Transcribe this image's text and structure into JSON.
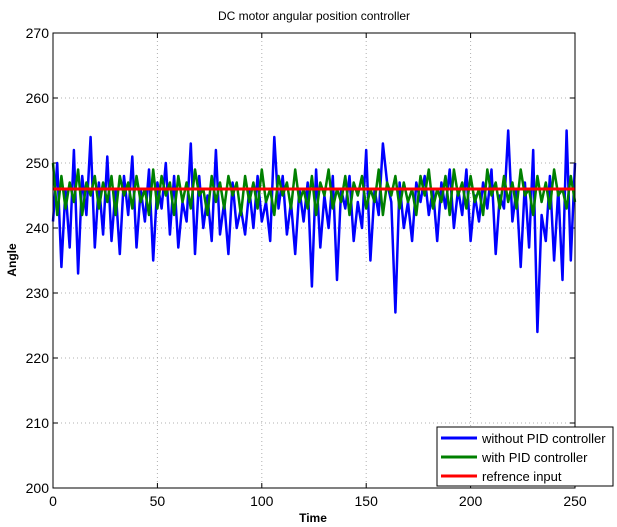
{
  "chart_data": {
    "type": "line",
    "title": "DC motor angular position controller",
    "xlabel": "Time",
    "ylabel": "Angle",
    "xlim": [
      0,
      250
    ],
    "ylim": [
      200,
      270
    ],
    "xticks": [
      0,
      50,
      100,
      150,
      200,
      250
    ],
    "yticks": [
      200,
      210,
      220,
      230,
      240,
      250,
      260,
      270
    ],
    "grid": true,
    "legend_position": "bottom-right",
    "series": [
      {
        "name": "without PID controller",
        "color": "#0000ff",
        "x": [
          0,
          2,
          4,
          6,
          8,
          10,
          12,
          14,
          16,
          18,
          20,
          22,
          24,
          26,
          28,
          30,
          32,
          34,
          36,
          38,
          40,
          42,
          44,
          46,
          48,
          50,
          52,
          54,
          56,
          58,
          60,
          62,
          64,
          66,
          68,
          70,
          72,
          74,
          76,
          78,
          80,
          82,
          84,
          86,
          88,
          90,
          92,
          94,
          96,
          98,
          100,
          102,
          104,
          106,
          108,
          110,
          112,
          114,
          116,
          118,
          120,
          122,
          124,
          126,
          128,
          130,
          132,
          134,
          136,
          138,
          140,
          142,
          144,
          146,
          148,
          150,
          152,
          154,
          156,
          158,
          160,
          162,
          164,
          166,
          168,
          170,
          172,
          174,
          176,
          178,
          180,
          182,
          184,
          186,
          188,
          190,
          192,
          194,
          196,
          198,
          200,
          202,
          204,
          206,
          208,
          210,
          212,
          214,
          216,
          218,
          220,
          222,
          224,
          226,
          228,
          230,
          232,
          234,
          236,
          238,
          240,
          242,
          244,
          246,
          248,
          250
        ],
        "y": [
          241,
          250,
          234,
          246,
          237,
          252,
          233,
          248,
          242,
          254,
          237,
          247,
          239,
          251,
          238,
          246,
          236,
          248,
          242,
          251,
          237,
          246,
          241,
          249,
          235,
          247,
          243,
          250,
          239,
          248,
          237,
          244,
          241,
          253,
          236,
          248,
          240,
          245,
          238,
          252,
          239,
          244,
          236,
          247,
          240,
          243,
          239,
          246,
          240,
          248,
          241,
          244,
          238,
          254,
          243,
          248,
          239,
          244,
          236,
          246,
          241,
          247,
          231,
          249,
          237,
          245,
          240,
          248,
          232,
          246,
          243,
          248,
          238,
          244,
          240,
          252,
          235,
          246,
          242,
          253,
          247,
          244,
          227,
          247,
          240,
          244,
          238,
          247,
          244,
          248,
          242,
          246,
          238,
          247,
          243,
          249,
          240,
          246,
          242,
          249,
          238,
          245,
          241,
          247,
          243,
          249,
          236,
          245,
          243,
          255,
          241,
          246,
          234,
          247,
          237,
          252,
          224,
          242,
          238,
          248,
          235,
          246,
          232,
          255,
          235,
          250
        ],
        "bind": "legend.items.0"
      },
      {
        "name": "with PID controller",
        "color": "#008000",
        "x": [
          0,
          2,
          4,
          6,
          8,
          10,
          12,
          14,
          16,
          18,
          20,
          22,
          24,
          26,
          28,
          30,
          32,
          34,
          36,
          38,
          40,
          42,
          44,
          46,
          48,
          50,
          52,
          54,
          56,
          58,
          60,
          62,
          64,
          66,
          68,
          70,
          72,
          74,
          76,
          78,
          80,
          82,
          84,
          86,
          88,
          90,
          92,
          94,
          96,
          98,
          100,
          102,
          104,
          106,
          108,
          110,
          112,
          114,
          116,
          118,
          120,
          122,
          124,
          126,
          128,
          130,
          132,
          134,
          136,
          138,
          140,
          142,
          144,
          146,
          148,
          150,
          152,
          154,
          156,
          158,
          160,
          162,
          164,
          166,
          168,
          170,
          172,
          174,
          176,
          178,
          180,
          182,
          184,
          186,
          188,
          190,
          192,
          194,
          196,
          198,
          200,
          202,
          204,
          206,
          208,
          210,
          212,
          214,
          216,
          218,
          220,
          222,
          224,
          226,
          228,
          230,
          232,
          234,
          236,
          238,
          240,
          242,
          244,
          246,
          248,
          250
        ],
        "y": [
          250,
          242,
          248,
          243,
          247,
          244,
          249,
          242,
          247,
          245,
          248,
          243,
          247,
          244,
          248,
          242,
          248,
          245,
          247,
          243,
          248,
          244,
          246,
          242,
          249,
          243,
          248,
          245,
          247,
          242,
          248,
          244,
          247,
          243,
          249,
          245,
          246,
          242,
          248,
          244,
          247,
          243,
          248,
          245,
          247,
          242,
          248,
          244,
          247,
          243,
          249,
          244,
          246,
          242,
          248,
          245,
          247,
          243,
          249,
          244,
          246,
          243,
          248,
          242,
          247,
          245,
          249,
          243,
          246,
          244,
          248,
          242,
          247,
          245,
          248,
          243,
          246,
          244,
          249,
          242,
          247,
          245,
          248,
          243,
          247,
          244,
          246,
          242,
          248,
          245,
          249,
          243,
          246,
          244,
          248,
          242,
          249,
          245,
          247,
          243,
          248,
          244,
          246,
          242,
          249,
          245,
          247,
          243,
          248,
          244,
          247,
          243,
          249,
          245,
          246,
          242,
          248,
          244,
          247,
          243,
          249,
          245,
          246,
          243,
          248,
          244
        ],
        "bind": "legend.items.1"
      },
      {
        "name": "refrence input",
        "color": "#ff0000",
        "x": [
          0,
          250
        ],
        "y": [
          246,
          246
        ],
        "bind": "legend.items.2"
      }
    ]
  },
  "legend": {
    "items": [
      "without PID controller",
      "with PID controller",
      "refrence input"
    ]
  }
}
